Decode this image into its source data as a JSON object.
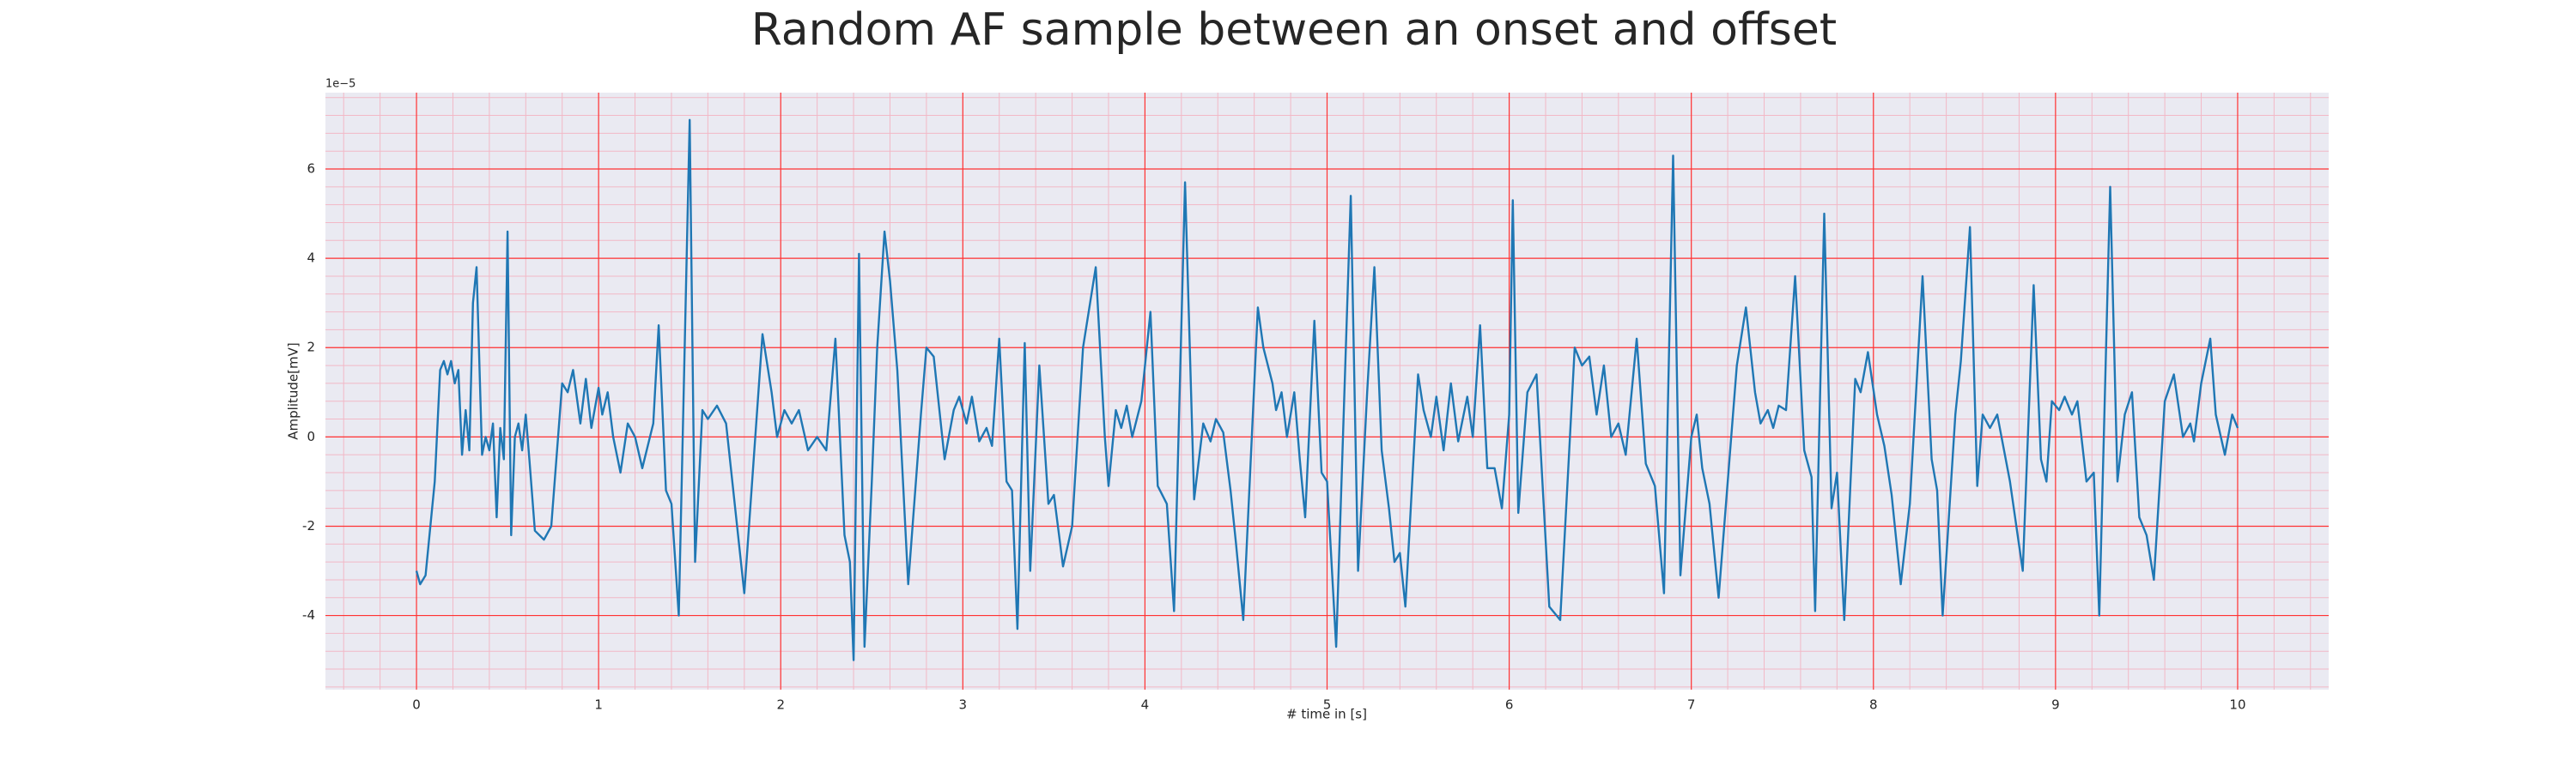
{
  "chart_data": {
    "type": "line",
    "title": "Random AF sample between an onset and offset",
    "xlabel": "# time in [s]",
    "ylabel": "Amplitude[mV]",
    "y_offset_text": "1e−5",
    "xlim": [
      -0.5,
      10.5
    ],
    "ylim": [
      -5.66,
      7.71
    ],
    "xticks": [
      0,
      1,
      2,
      3,
      4,
      5,
      6,
      7,
      8,
      9,
      10
    ],
    "yticks": [
      -4,
      -2,
      0,
      2,
      4,
      6
    ],
    "grid": true,
    "minor_grid": true,
    "background": "#eaeaf2",
    "grid_color": "#ff3333",
    "minor_grid_color": "#f2b8c6",
    "series": [
      {
        "color": "#1f77b4",
        "x": [
          0,
          0.02,
          0.05,
          0.1,
          0.13,
          0.15,
          0.17,
          0.19,
          0.21,
          0.23,
          0.25,
          0.27,
          0.29,
          0.31,
          0.33,
          0.36,
          0.38,
          0.4,
          0.42,
          0.44,
          0.46,
          0.48,
          0.5,
          0.52,
          0.54,
          0.56,
          0.58,
          0.6,
          0.62,
          0.65,
          0.7,
          0.74,
          0.8,
          0.83,
          0.86,
          0.9,
          0.93,
          0.96,
          1.0,
          1.02,
          1.05,
          1.08,
          1.12,
          1.16,
          1.2,
          1.24,
          1.3,
          1.33,
          1.37,
          1.4,
          1.44,
          1.47,
          1.5,
          1.53,
          1.57,
          1.6,
          1.65,
          1.7,
          1.8,
          1.9,
          1.95,
          1.98,
          2.02,
          2.06,
          2.1,
          2.15,
          2.2,
          2.25,
          2.3,
          2.35,
          2.38,
          2.4,
          2.43,
          2.46,
          2.5,
          2.53,
          2.57,
          2.6,
          2.64,
          2.7,
          2.77,
          2.8,
          2.84,
          2.9,
          2.95,
          2.98,
          3.02,
          3.05,
          3.09,
          3.13,
          3.16,
          3.2,
          3.24,
          3.27,
          3.3,
          3.34,
          3.37,
          3.42,
          3.47,
          3.5,
          3.55,
          3.6,
          3.66,
          3.73,
          3.78,
          3.8,
          3.84,
          3.87,
          3.9,
          3.93,
          3.98,
          4.03,
          4.07,
          4.12,
          4.16,
          4.22,
          4.27,
          4.32,
          4.36,
          4.39,
          4.43,
          4.47,
          4.5,
          4.54,
          4.62,
          4.65,
          4.7,
          4.72,
          4.75,
          4.78,
          4.82,
          4.85,
          4.88,
          4.93,
          4.97,
          5.0,
          5.05,
          5.13,
          5.17,
          5.22,
          5.26,
          5.3,
          5.34,
          5.37,
          5.4,
          5.43,
          5.5,
          5.53,
          5.57,
          5.6,
          5.64,
          5.68,
          5.72,
          5.77,
          5.8,
          5.84,
          5.88,
          5.92,
          5.96,
          6.0,
          6.02,
          6.05,
          6.1,
          6.15,
          6.22,
          6.28,
          6.36,
          6.4,
          6.44,
          6.48,
          6.52,
          6.56,
          6.6,
          6.64,
          6.7,
          6.75,
          6.8,
          6.85,
          6.9,
          6.94,
          7.0,
          7.03,
          7.06,
          7.1,
          7.15,
          7.25,
          7.3,
          7.35,
          7.38,
          7.42,
          7.45,
          7.48,
          7.52,
          7.57,
          7.62,
          7.66,
          7.68,
          7.73,
          7.77,
          7.8,
          7.84,
          7.9,
          7.93,
          7.97,
          8.02,
          8.06,
          8.1,
          8.15,
          8.2,
          8.27,
          8.32,
          8.35,
          8.38,
          8.45,
          8.48,
          8.53,
          8.57,
          8.6,
          8.64,
          8.68,
          8.75,
          8.82,
          8.88,
          8.92,
          8.95,
          8.98,
          9.02,
          9.05,
          9.09,
          9.12,
          9.17,
          9.21,
          9.24,
          9.3,
          9.34,
          9.38,
          9.42,
          9.46,
          9.5,
          9.54,
          9.6,
          9.65,
          9.7,
          9.74,
          9.76,
          9.8,
          9.85,
          9.88,
          9.93,
          9.97,
          10.0
        ],
        "values": [
          -3.0,
          -3.3,
          -3.1,
          -1,
          1.5,
          1.7,
          1.4,
          1.7,
          1.2,
          1.5,
          -0.4,
          0.6,
          -0.3,
          3.0,
          3.8,
          -0.4,
          0,
          -0.3,
          0.3,
          -1.8,
          0.2,
          -0.5,
          4.6,
          -2.2,
          0,
          0.3,
          -0.3,
          0.5,
          -0.5,
          -2.1,
          -2.3,
          -2,
          1.2,
          1.0,
          1.5,
          0.3,
          1.3,
          0.2,
          1.1,
          0.5,
          1.0,
          0,
          -0.8,
          0.3,
          0,
          -0.7,
          0.3,
          2.5,
          -1.2,
          -1.5,
          -4.0,
          1.5,
          7.1,
          -2.8,
          0.6,
          0.4,
          0.7,
          0.3,
          -3.5,
          2.3,
          1.0,
          0,
          0.6,
          0.3,
          0.6,
          -0.3,
          0,
          -0.3,
          2.2,
          -2.2,
          -2.8,
          -5.0,
          4.1,
          -4.7,
          -1,
          2,
          4.6,
          3.5,
          1.5,
          -3.3,
          0.5,
          2.0,
          1.8,
          -0.5,
          0.6,
          0.9,
          0.3,
          0.9,
          -0.1,
          0.2,
          -0.2,
          2.2,
          -1.0,
          -1.2,
          -4.3,
          2.1,
          -3.0,
          1.6,
          -1.5,
          -1.3,
          -2.9,
          -2.0,
          2.0,
          3.8,
          0,
          -1.1,
          0.6,
          0.2,
          0.7,
          0,
          0.8,
          2.8,
          -1.1,
          -1.5,
          -3.9,
          5.7,
          -1.4,
          0.3,
          -0.1,
          0.4,
          0.1,
          -1.2,
          -2.4,
          -4.1,
          2.9,
          2.0,
          1.2,
          0.6,
          1.0,
          0,
          1.0,
          -0.5,
          -1.8,
          2.6,
          -0.8,
          -1.0,
          -4.7,
          5.4,
          -3.0,
          1,
          3.8,
          -0.3,
          -1.6,
          -2.8,
          -2.6,
          -3.8,
          1.4,
          0.6,
          0.0,
          0.9,
          -0.3,
          1.2,
          -0.1,
          0.9,
          0,
          2.5,
          -0.7,
          -0.7,
          -1.6,
          0.5,
          5.3,
          -1.7,
          1.0,
          1.4,
          -3.8,
          -4.1,
          2.0,
          1.6,
          1.8,
          0.5,
          1.6,
          0,
          0.3,
          -0.4,
          2.2,
          -0.6,
          -1.1,
          -3.5,
          6.3,
          -3.1,
          0,
          0.5,
          -0.7,
          -1.5,
          -3.6,
          1.6,
          2.9,
          1.0,
          0.3,
          0.6,
          0.2,
          0.7,
          0.6,
          3.6,
          -0.3,
          -0.9,
          -3.9,
          5.0,
          -1.6,
          -0.8,
          -4.1,
          1.3,
          1.0,
          1.9,
          0.5,
          -0.2,
          -1.3,
          -3.3,
          -1.5,
          3.6,
          -0.5,
          -1.2,
          -4.0,
          0.5,
          1.7,
          4.7,
          -1.1,
          0.5,
          0.2,
          0.5,
          -1.0,
          -3.0,
          3.4,
          -0.5,
          -1.0,
          0.8,
          0.6,
          0.9,
          0.5,
          0.8,
          -1.0,
          -0.8,
          -4.0,
          5.6,
          -1.0,
          0.5,
          1.0,
          -1.8,
          -2.2,
          -3.2,
          0.8,
          1.4,
          0,
          0.3,
          -0.1,
          1.2,
          2.2,
          0.5,
          -0.4,
          0.5,
          0.2
        ]
      }
    ]
  }
}
